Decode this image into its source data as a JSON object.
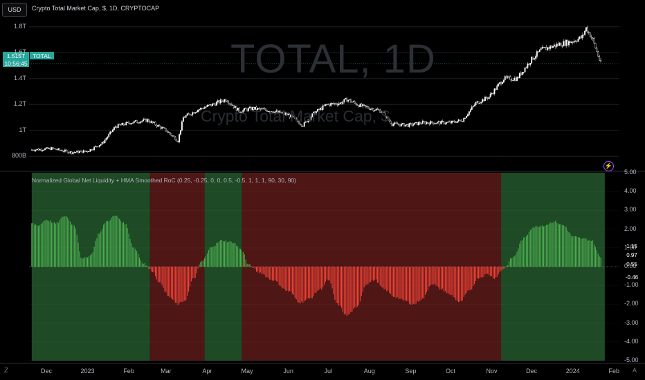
{
  "toolbar": {
    "currency": "USD"
  },
  "main_chart": {
    "title": "Crypto Total Market Cap, $, 1D, CRYPTOCAP",
    "watermark": "TOTAL, 1D",
    "watermark_sub": "Crypto Total Market Cap, $",
    "current_price": "1.515T",
    "countdown": "10:56:45",
    "symbol": "TOTAL"
  },
  "indicator": {
    "title": "Normalized Global Net Liquidity + HMA Smoothed RoC (0.25, -0.25, 0, 0, 0.5, -0.5, 1, 1, 1, 90, 30, 90)",
    "value_tags": [
      {
        "text": "1.15",
        "color": "#2962ff"
      },
      {
        "text": "0.97",
        "color": "#2962ff"
      },
      {
        "text": "0.55",
        "color": "#4caf50"
      },
      {
        "text": "-0.46",
        "color": "#2962ff"
      }
    ]
  },
  "colors": {
    "up": "#4caf50",
    "down": "#f44336",
    "bg_green": "#1f4a26",
    "bg_red": "#4f1616",
    "candle": "#ffffff",
    "grid": "#1c1f26"
  },
  "chart_data": [
    {
      "type": "candlestick",
      "title": "Crypto Total Market Cap, $, 1D, CRYPTOCAP",
      "y_ticks": [
        "800B",
        "1T",
        "1.2T",
        "1.4T",
        "1.6T",
        "1.8T"
      ],
      "y_tick_values": [
        800,
        1000,
        1200,
        1400,
        1600,
        1800
      ],
      "ylim": [
        700,
        1900
      ],
      "y_unit": "billions USD",
      "x": [
        "2022-11-20",
        "2022-12-05",
        "2022-12-20",
        "2023-01-01",
        "2023-01-12",
        "2023-01-22",
        "2023-02-02",
        "2023-02-15",
        "2023-03-01",
        "2023-03-10",
        "2023-03-14",
        "2023-03-25",
        "2023-04-05",
        "2023-04-15",
        "2023-04-25",
        "2023-05-05",
        "2023-05-20",
        "2023-06-01",
        "2023-06-12",
        "2023-06-20",
        "2023-06-30",
        "2023-07-10",
        "2023-07-15",
        "2023-07-25",
        "2023-08-10",
        "2023-08-18",
        "2023-08-30",
        "2023-09-10",
        "2023-09-20",
        "2023-10-01",
        "2023-10-10",
        "2023-10-20",
        "2023-10-30",
        "2023-11-10",
        "2023-11-20",
        "2023-12-01",
        "2023-12-08",
        "2023-12-20",
        "2024-01-01",
        "2024-01-08",
        "2024-01-11",
        "2024-01-16",
        "2024-01-22"
      ],
      "close": [
        850,
        860,
        830,
        840,
        900,
        1030,
        1060,
        1080,
        1000,
        920,
        1100,
        1160,
        1200,
        1240,
        1150,
        1170,
        1150,
        1120,
        1040,
        1130,
        1200,
        1210,
        1240,
        1190,
        1150,
        1050,
        1040,
        1060,
        1060,
        1060,
        1080,
        1210,
        1260,
        1400,
        1400,
        1550,
        1620,
        1660,
        1690,
        1720,
        1790,
        1700,
        1515
      ]
    },
    {
      "type": "bar",
      "title": "Normalized Global Net Liquidity + HMA Smoothed RoC (0.25, -0.25, 0, 0, 0.5, -0.5, 1, 1, 1, 90, 30, 90)",
      "y_ticks": [
        "5.00",
        "4.00",
        "3.00",
        "2.00",
        "1.00",
        "0.00",
        "-1.00",
        "-2.00",
        "-3.00",
        "-4.00",
        "-5.00"
      ],
      "y_tick_values": [
        5,
        4,
        3,
        2,
        1,
        0,
        -1,
        -2,
        -3,
        -4,
        -5
      ],
      "ylim": [
        -5,
        5
      ],
      "x": [
        "2022-11-20",
        "2022-11-25",
        "2022-12-01",
        "2022-12-08",
        "2022-12-15",
        "2022-12-22",
        "2022-12-28",
        "2023-01-03",
        "2023-01-10",
        "2023-01-15",
        "2023-01-22",
        "2023-01-29",
        "2023-02-05",
        "2023-02-12",
        "2023-02-18",
        "2023-02-25",
        "2023-03-03",
        "2023-03-10",
        "2023-03-15",
        "2023-03-22",
        "2023-03-28",
        "2023-04-05",
        "2023-04-12",
        "2023-04-20",
        "2023-04-27",
        "2023-05-02",
        "2023-05-10",
        "2023-05-20",
        "2023-06-01",
        "2023-06-10",
        "2023-06-17",
        "2023-06-25",
        "2023-07-01",
        "2023-07-08",
        "2023-07-15",
        "2023-07-22",
        "2023-07-30",
        "2023-08-05",
        "2023-08-12",
        "2023-08-20",
        "2023-08-27",
        "2023-09-03",
        "2023-09-10",
        "2023-09-17",
        "2023-09-24",
        "2023-10-01",
        "2023-10-08",
        "2023-10-15",
        "2023-10-22",
        "2023-10-29",
        "2023-11-03",
        "2023-11-10",
        "2023-11-17",
        "2023-11-25",
        "2023-12-02",
        "2023-12-10",
        "2023-12-18",
        "2023-12-25",
        "2024-01-01",
        "2024-01-08",
        "2024-01-15",
        "2024-01-22"
      ],
      "values": [
        2.3,
        2.2,
        2.5,
        2.3,
        2.7,
        2.2,
        0.4,
        0.6,
        1.8,
        2.4,
        2.7,
        2.3,
        1.0,
        0.2,
        -0.2,
        -0.9,
        -1.6,
        -2.0,
        -1.8,
        -0.6,
        0.3,
        1.1,
        1.4,
        1.3,
        0.9,
        0.1,
        -0.3,
        -0.7,
        -1.3,
        -1.9,
        -1.7,
        -1.2,
        -0.7,
        -2.0,
        -2.6,
        -2.2,
        -0.9,
        -0.7,
        -1.2,
        -1.6,
        -1.8,
        -2.0,
        -1.7,
        -0.9,
        -1.2,
        -1.5,
        -1.9,
        -1.3,
        -0.6,
        -0.4,
        -0.6,
        -0.1,
        0.5,
        1.5,
        2.1,
        2.2,
        2.4,
        2.2,
        1.6,
        1.5,
        1.4,
        0.5
      ],
      "background_regimes": [
        {
          "from": "2022-11-20",
          "to": "2023-02-17",
          "state": "positive"
        },
        {
          "from": "2023-02-17",
          "to": "2023-03-30",
          "state": "negative"
        },
        {
          "from": "2023-03-30",
          "to": "2023-04-27",
          "state": "positive"
        },
        {
          "from": "2023-04-27",
          "to": "2023-11-08",
          "state": "negative"
        },
        {
          "from": "2023-11-08",
          "to": "2024-01-25",
          "state": "positive"
        }
      ]
    }
  ],
  "x_ticks": [
    "Dec",
    "2023",
    "Feb",
    "Mar",
    "Apr",
    "May",
    "Jun",
    "Jul",
    "Aug",
    "Sep",
    "Oct",
    "Nov",
    "Dec",
    "2024",
    "Feb"
  ],
  "x_tick_dates": [
    "2022-12-01",
    "2023-01-01",
    "2023-02-01",
    "2023-03-01",
    "2023-04-01",
    "2023-05-01",
    "2023-06-01",
    "2023-07-01",
    "2023-08-01",
    "2023-09-01",
    "2023-10-01",
    "2023-11-01",
    "2023-12-01",
    "2024-01-01",
    "2024-02-01"
  ],
  "footer": {
    "logo": "Z",
    "auto": "A"
  }
}
